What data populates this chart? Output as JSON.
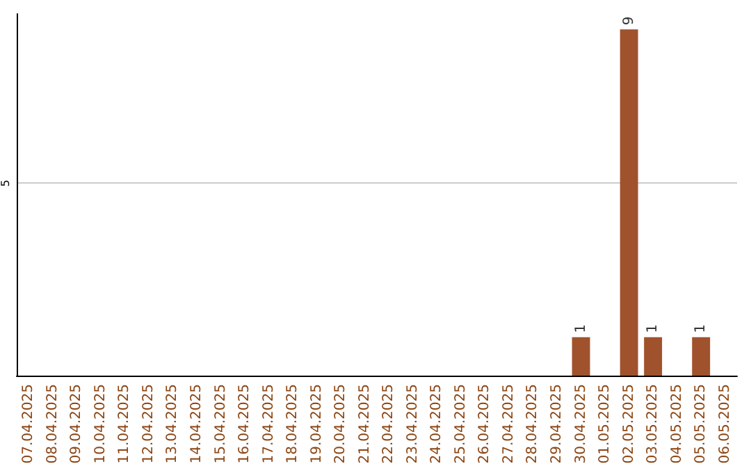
{
  "chart_data": {
    "type": "bar",
    "categories": [
      "07.04.2025",
      "08.04.2025",
      "09.04.2025",
      "10.04.2025",
      "11.04.2025",
      "12.04.2025",
      "13.04.2025",
      "14.04.2025",
      "15.04.2025",
      "16.04.2025",
      "17.04.2025",
      "18.04.2025",
      "19.04.2025",
      "20.04.2025",
      "21.04.2025",
      "22.04.2025",
      "23.04.2025",
      "24.04.2025",
      "25.04.2025",
      "26.04.2025",
      "27.04.2025",
      "28.04.2025",
      "29.04.2025",
      "30.04.2025",
      "01.05.2025",
      "02.05.2025",
      "03.05.2025",
      "04.05.2025",
      "05.05.2025",
      "06.05.2025"
    ],
    "values": [
      null,
      null,
      null,
      null,
      null,
      null,
      null,
      null,
      null,
      null,
      null,
      null,
      null,
      null,
      null,
      null,
      null,
      null,
      null,
      null,
      null,
      null,
      null,
      1,
      null,
      9,
      1,
      null,
      1,
      null
    ],
    "color": "#a0522d",
    "ylim": [
      0,
      9.4
    ],
    "yticks": [
      5
    ],
    "grid": "y",
    "data_labels": true
  }
}
